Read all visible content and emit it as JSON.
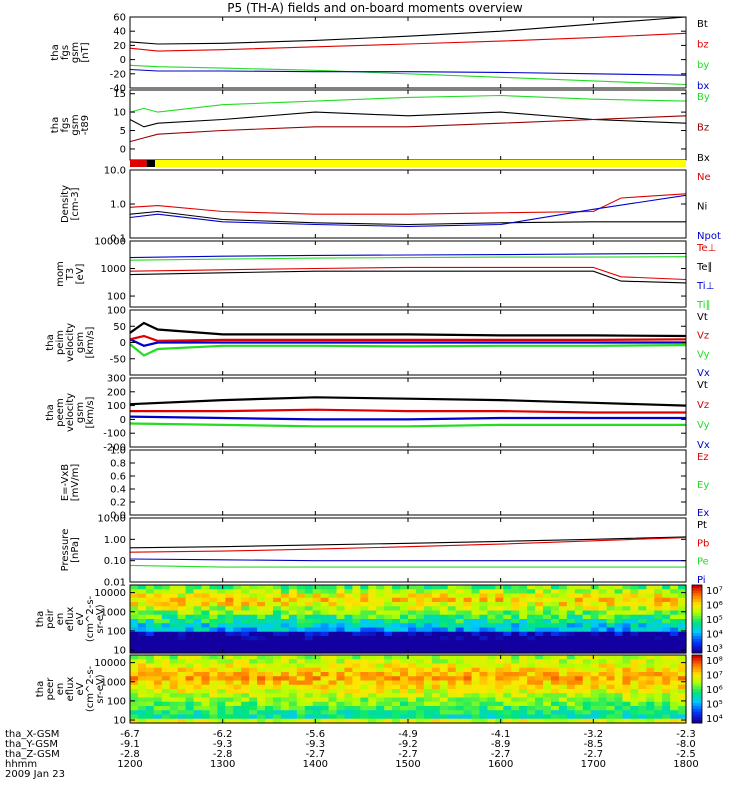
{
  "title": "P5 (TH-A) fields and on-board moments overview",
  "colors": {
    "black": "#000000",
    "red": "#e00000",
    "green": "#22dd22",
    "blue": "#0000cc",
    "darkred": "#990000",
    "yellow": "#ffff00"
  },
  "footer": {
    "rows": [
      {
        "label": "tha_X-GSM",
        "values": [
          "-6.7",
          "-6.2",
          "-5.6",
          "-4.9",
          "-4.1",
          "-3.2",
          "-2.3"
        ]
      },
      {
        "label": "tha_Y-GSM",
        "values": [
          "-9.1",
          "-9.3",
          "-9.3",
          "-9.2",
          "-8.9",
          "-8.5",
          "-8.0"
        ]
      },
      {
        "label": "tha_Z-GSM",
        "values": [
          "-2.8",
          "-2.8",
          "-2.7",
          "-2.7",
          "-2.7",
          "-2.7",
          "-2.5"
        ]
      },
      {
        "label": "hhmm",
        "values": [
          "1200",
          "1300",
          "1400",
          "1500",
          "1600",
          "1700",
          "1800"
        ]
      }
    ],
    "date": "2009 Jan 23"
  },
  "chart_data": [
    {
      "type": "line",
      "ylabel": [
        "tha",
        "fgs",
        "gsm",
        "[nT]"
      ],
      "yticks": [
        "60",
        "40",
        "20",
        "0",
        "-20",
        "-40"
      ],
      "ylim": [
        -40,
        60
      ],
      "legend": [
        {
          "text": "Bt",
          "color": "#000000"
        },
        {
          "text": "bz",
          "color": "#e00000"
        },
        {
          "text": "by",
          "color": "#22dd22"
        },
        {
          "text": "bx",
          "color": "#0000cc"
        }
      ],
      "series": [
        {
          "color": "#000000",
          "x": [
            1200,
            1230,
            1300,
            1400,
            1500,
            1600,
            1700,
            1800
          ],
          "y": [
            25,
            22,
            23,
            27,
            33,
            40,
            50,
            60
          ]
        },
        {
          "color": "#e00000",
          "x": [
            1200,
            1230,
            1300,
            1400,
            1500,
            1600,
            1700,
            1800
          ],
          "y": [
            16,
            12,
            14,
            18,
            22,
            26,
            31,
            37
          ]
        },
        {
          "color": "#22dd22",
          "x": [
            1200,
            1230,
            1300,
            1400,
            1500,
            1600,
            1700,
            1800
          ],
          "y": [
            -8,
            -10,
            -12,
            -15,
            -20,
            -25,
            -30,
            -35
          ]
        },
        {
          "color": "#0000cc",
          "x": [
            1200,
            1230,
            1300,
            1400,
            1500,
            1600,
            1700,
            1800
          ],
          "y": [
            -14,
            -16,
            -16,
            -17,
            -17,
            -18,
            -20,
            -22
          ]
        }
      ]
    },
    {
      "type": "line",
      "ylabel": [
        "tha",
        "fgs",
        "gsm",
        "-t89"
      ],
      "yticks": [
        "15",
        "10",
        "5",
        "0"
      ],
      "ylim": [
        -3,
        16
      ],
      "legend": [
        {
          "text": "By",
          "color": "#22dd22"
        },
        {
          "text": "Bz",
          "color": "#990000"
        },
        {
          "text": "Bx",
          "color": "#000000"
        }
      ],
      "series": [
        {
          "color": "#22dd22",
          "x": [
            1200,
            1215,
            1230,
            1300,
            1400,
            1500,
            1600,
            1700,
            1800
          ],
          "y": [
            10,
            11,
            10,
            12,
            13,
            14,
            14.5,
            13.5,
            13
          ]
        },
        {
          "color": "#000000",
          "x": [
            1200,
            1215,
            1230,
            1300,
            1400,
            1500,
            1600,
            1700,
            1800
          ],
          "y": [
            8,
            6,
            7,
            8,
            10,
            9,
            10,
            8,
            7
          ]
        },
        {
          "color": "#990000",
          "x": [
            1200,
            1215,
            1230,
            1300,
            1400,
            1500,
            1600,
            1700,
            1800
          ],
          "y": [
            2,
            3,
            4,
            5,
            6,
            6,
            7,
            8,
            9
          ]
        }
      ]
    },
    {
      "type": "bar",
      "segments": [
        {
          "color": "#e00000",
          "x0": 1200,
          "x1": 1218
        },
        {
          "color": "#000000",
          "x0": 1218,
          "x1": 1227
        },
        {
          "color": "#ffff00",
          "x0": 1227,
          "x1": 1800
        }
      ]
    },
    {
      "type": "line",
      "ylabel": [
        "Density",
        "[cm-3]"
      ],
      "yticks": [
        "10.0",
        "1.0",
        "0.1"
      ],
      "log": true,
      "ylim": [
        0.1,
        10
      ],
      "legend": [
        {
          "text": "Ne",
          "color": "#e00000"
        },
        {
          "text": "Ni",
          "color": "#000000"
        },
        {
          "text": "Npot",
          "color": "#0000cc"
        }
      ],
      "series": [
        {
          "color": "#e00000",
          "x": [
            1200,
            1230,
            1300,
            1400,
            1500,
            1600,
            1700,
            1730,
            1800
          ],
          "y": [
            0.8,
            0.9,
            0.6,
            0.5,
            0.5,
            0.55,
            0.6,
            1.5,
            2.0
          ]
        },
        {
          "color": "#000000",
          "x": [
            1200,
            1230,
            1300,
            1400,
            1500,
            1600,
            1700,
            1800
          ],
          "y": [
            0.5,
            0.6,
            0.35,
            0.28,
            0.25,
            0.28,
            0.3,
            0.3
          ]
        },
        {
          "color": "#0000cc",
          "x": [
            1200,
            1230,
            1300,
            1400,
            1500,
            1600,
            1700,
            1800
          ],
          "y": [
            0.4,
            0.5,
            0.3,
            0.25,
            0.22,
            0.25,
            0.7,
            1.8
          ]
        }
      ]
    },
    {
      "type": "line",
      "ylabel": [
        "mom",
        "T3",
        "[eV]"
      ],
      "yticks": [
        "10000",
        "1000",
        "100"
      ],
      "log": true,
      "ylim": [
        40,
        10000
      ],
      "legend": [
        {
          "text": "Te⊥",
          "color": "#e00000"
        },
        {
          "text": "Te∥",
          "color": "#000000"
        },
        {
          "text": "Ti⊥",
          "color": "#0000cc"
        },
        {
          "text": "Ti∥",
          "color": "#22dd22"
        }
      ],
      "series": [
        {
          "color": "#0000cc",
          "x": [
            1200,
            1300,
            1400,
            1500,
            1600,
            1700,
            1800
          ],
          "y": [
            2500,
            2800,
            3000,
            3100,
            3200,
            3400,
            3500
          ]
        },
        {
          "color": "#22dd22",
          "x": [
            1200,
            1300,
            1400,
            1500,
            1600,
            1700,
            1800
          ],
          "y": [
            2000,
            2200,
            2400,
            2500,
            2600,
            2600,
            2700
          ]
        },
        {
          "color": "#e00000",
          "x": [
            1200,
            1300,
            1400,
            1500,
            1600,
            1700,
            1730,
            1800
          ],
          "y": [
            800,
            900,
            1000,
            1100,
            1100,
            1100,
            500,
            400
          ]
        },
        {
          "color": "#000000",
          "x": [
            1200,
            1300,
            1400,
            1500,
            1600,
            1700,
            1730,
            1800
          ],
          "y": [
            600,
            700,
            800,
            800,
            800,
            800,
            350,
            300
          ]
        }
      ]
    },
    {
      "type": "line",
      "ylabel": [
        "tha",
        "peim",
        "velocity",
        "gsm",
        "[km/s]"
      ],
      "yticks": [
        "100",
        "50",
        "0",
        "-50"
      ],
      "ylim": [
        -100,
        100
      ],
      "legend": [
        {
          "text": "Vt",
          "color": "#000000"
        },
        {
          "text": "Vz",
          "color": "#e00000"
        },
        {
          "text": "Vy",
          "color": "#22dd22"
        },
        {
          "text": "Vx",
          "color": "#0000cc"
        }
      ],
      "series": [
        {
          "color": "#22dd22",
          "x": [
            1200,
            1215,
            1230,
            1300,
            1400,
            1500,
            1600,
            1700,
            1800
          ],
          "y": [
            -5,
            -40,
            -20,
            -10,
            -10,
            -12,
            -10,
            -10,
            -8
          ]
        },
        {
          "color": "#0000cc",
          "x": [
            1200,
            1215,
            1230,
            1300,
            1400,
            1500,
            1600,
            1700,
            1800
          ],
          "y": [
            10,
            -10,
            0,
            0,
            0,
            0,
            0,
            0,
            0
          ]
        },
        {
          "color": "#e00000",
          "x": [
            1200,
            1215,
            1230,
            1300,
            1400,
            1500,
            1600,
            1700,
            1800
          ],
          "y": [
            10,
            20,
            5,
            8,
            8,
            8,
            8,
            8,
            10
          ]
        },
        {
          "color": "#000000",
          "x": [
            1200,
            1215,
            1230,
            1300,
            1400,
            1500,
            1600,
            1700,
            1800
          ],
          "y": [
            30,
            60,
            40,
            25,
            25,
            25,
            22,
            22,
            20
          ]
        }
      ]
    },
    {
      "type": "line",
      "ylabel": [
        "tha",
        "peem",
        "velocity",
        "gsm",
        "[km/s]"
      ],
      "yticks": [
        "300",
        "200",
        "100",
        "0",
        "-100",
        "-200"
      ],
      "ylim": [
        -200,
        300
      ],
      "legend": [
        {
          "text": "Vt",
          "color": "#000000"
        },
        {
          "text": "Vz",
          "color": "#e00000"
        },
        {
          "text": "Vy",
          "color": "#22dd22"
        },
        {
          "text": "Vx",
          "color": "#0000cc"
        }
      ],
      "series": [
        {
          "color": "#22dd22",
          "x": [
            1200,
            1300,
            1400,
            1500,
            1600,
            1700,
            1800
          ],
          "y": [
            -30,
            -40,
            -50,
            -50,
            -40,
            -40,
            -40
          ]
        },
        {
          "color": "#0000cc",
          "x": [
            1200,
            1300,
            1400,
            1500,
            1600,
            1700,
            1800
          ],
          "y": [
            20,
            10,
            0,
            0,
            10,
            10,
            10
          ]
        },
        {
          "color": "#e00000",
          "x": [
            1200,
            1300,
            1400,
            1500,
            1600,
            1700,
            1800
          ],
          "y": [
            60,
            60,
            70,
            60,
            60,
            50,
            50
          ]
        },
        {
          "color": "#000000",
          "x": [
            1200,
            1300,
            1400,
            1500,
            1600,
            1700,
            1800
          ],
          "y": [
            110,
            140,
            160,
            150,
            140,
            120,
            100
          ]
        }
      ]
    },
    {
      "type": "line",
      "ylabel": [
        "E=-VxB",
        "[mV/m]"
      ],
      "yticks": [
        "1.0",
        "0.8",
        "0.6",
        "0.4",
        "0.2",
        "0.0"
      ],
      "ylim": [
        0,
        1
      ],
      "legend": [
        {
          "text": "Ez",
          "color": "#e00000"
        },
        {
          "text": "Ey",
          "color": "#22dd22"
        },
        {
          "text": "Ex",
          "color": "#0000cc"
        }
      ],
      "series": []
    },
    {
      "type": "line",
      "ylabel": [
        "Pressure",
        "[nPa]"
      ],
      "yticks": [
        "10.00",
        "1.00",
        "0.10",
        "0.01"
      ],
      "log": true,
      "ylim": [
        0.01,
        10
      ],
      "legend": [
        {
          "text": "Pt",
          "color": "#000000"
        },
        {
          "text": "Pb",
          "color": "#e00000"
        },
        {
          "text": "Pe",
          "color": "#22dd22"
        },
        {
          "text": "Pi",
          "color": "#0000cc"
        }
      ],
      "series": [
        {
          "color": "#000000",
          "x": [
            1200,
            1300,
            1400,
            1500,
            1600,
            1700,
            1800
          ],
          "y": [
            0.4,
            0.45,
            0.55,
            0.65,
            0.8,
            1.0,
            1.3
          ]
        },
        {
          "color": "#e00000",
          "x": [
            1200,
            1300,
            1400,
            1500,
            1600,
            1700,
            1800
          ],
          "y": [
            0.25,
            0.28,
            0.35,
            0.45,
            0.6,
            0.85,
            1.2
          ]
        },
        {
          "color": "#0000cc",
          "x": [
            1200,
            1300,
            1400,
            1500,
            1600,
            1700,
            1800
          ],
          "y": [
            0.12,
            0.11,
            0.1,
            0.1,
            0.1,
            0.1,
            0.1
          ]
        },
        {
          "color": "#22dd22",
          "x": [
            1200,
            1300,
            1400,
            1500,
            1600,
            1700,
            1800
          ],
          "y": [
            0.06,
            0.05,
            0.05,
            0.05,
            0.05,
            0.05,
            0.05
          ]
        }
      ]
    },
    {
      "type": "heatmap",
      "ylabel": [
        "tha",
        "peir",
        "en",
        "eflux",
        "eV",
        "(cm^2-s-",
        "sr-eV)"
      ],
      "yticks": [
        "10000",
        "1000",
        "100",
        "10"
      ],
      "log": true,
      "ylim": [
        7,
        25000
      ],
      "colorbar_ticks": [
        "10⁷",
        "10⁶",
        "10⁵",
        "10⁴",
        "10³"
      ]
    },
    {
      "type": "heatmap",
      "ylabel": [
        "tha",
        "peer",
        "en",
        "eflux",
        "eV",
        "(cm^2-s-",
        "sr-eV)"
      ],
      "yticks": [
        "10000",
        "1000",
        "100",
        "10"
      ],
      "log": true,
      "ylim": [
        7,
        25000
      ],
      "colorbar_ticks": [
        "10⁸",
        "10⁷",
        "10⁶",
        "10⁵",
        "10⁴"
      ]
    }
  ]
}
